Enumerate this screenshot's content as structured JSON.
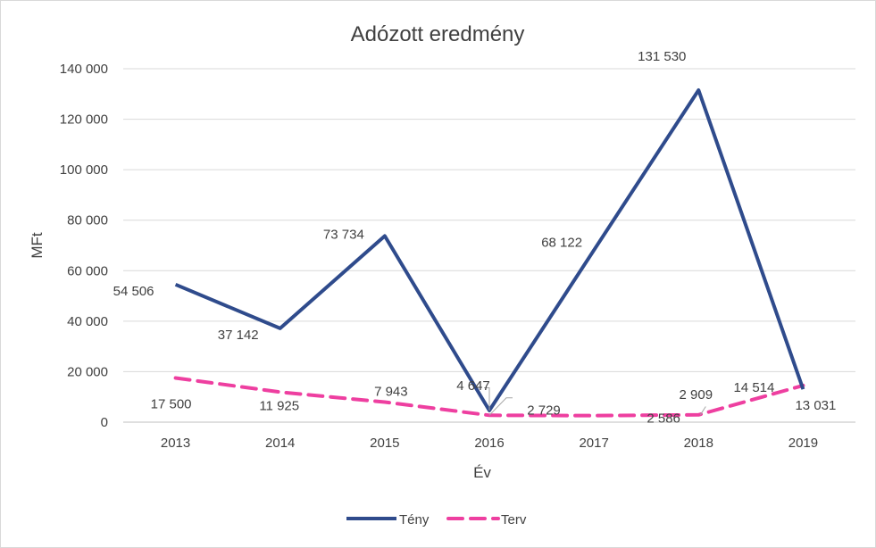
{
  "chart_data": {
    "type": "line",
    "title": "Adózott eredmény",
    "xlabel": "Év",
    "ylabel": "MFt",
    "categories": [
      "2013",
      "2014",
      "2015",
      "2016",
      "2017",
      "2018",
      "2019"
    ],
    "ylim": [
      0,
      140000
    ],
    "yticks": [
      0,
      20000,
      40000,
      60000,
      80000,
      100000,
      120000,
      140000
    ],
    "ytick_labels": [
      "0",
      "20 000",
      "40 000",
      "60 000",
      "80 000",
      "100 000",
      "120 000",
      "140 000"
    ],
    "grid": true,
    "legend_position": "bottom",
    "series": [
      {
        "name": "Tény",
        "color": "#2f4b8c",
        "style": "solid",
        "values": [
          54506,
          37142,
          73734,
          4647,
          68122,
          131530,
          13031
        ],
        "labels": [
          "54 506",
          "37 142",
          "73 734",
          "4 647",
          "68 122",
          "131 530",
          "13 031"
        ]
      },
      {
        "name": "Terv",
        "color": "#ee3fa0",
        "style": "dashed",
        "values": [
          17500,
          11925,
          7943,
          2729,
          2586,
          2909,
          14514
        ],
        "labels": [
          "17 500",
          "11 925",
          "7 943",
          "2 729",
          "2 586",
          "2 909",
          "14 514"
        ]
      }
    ]
  }
}
